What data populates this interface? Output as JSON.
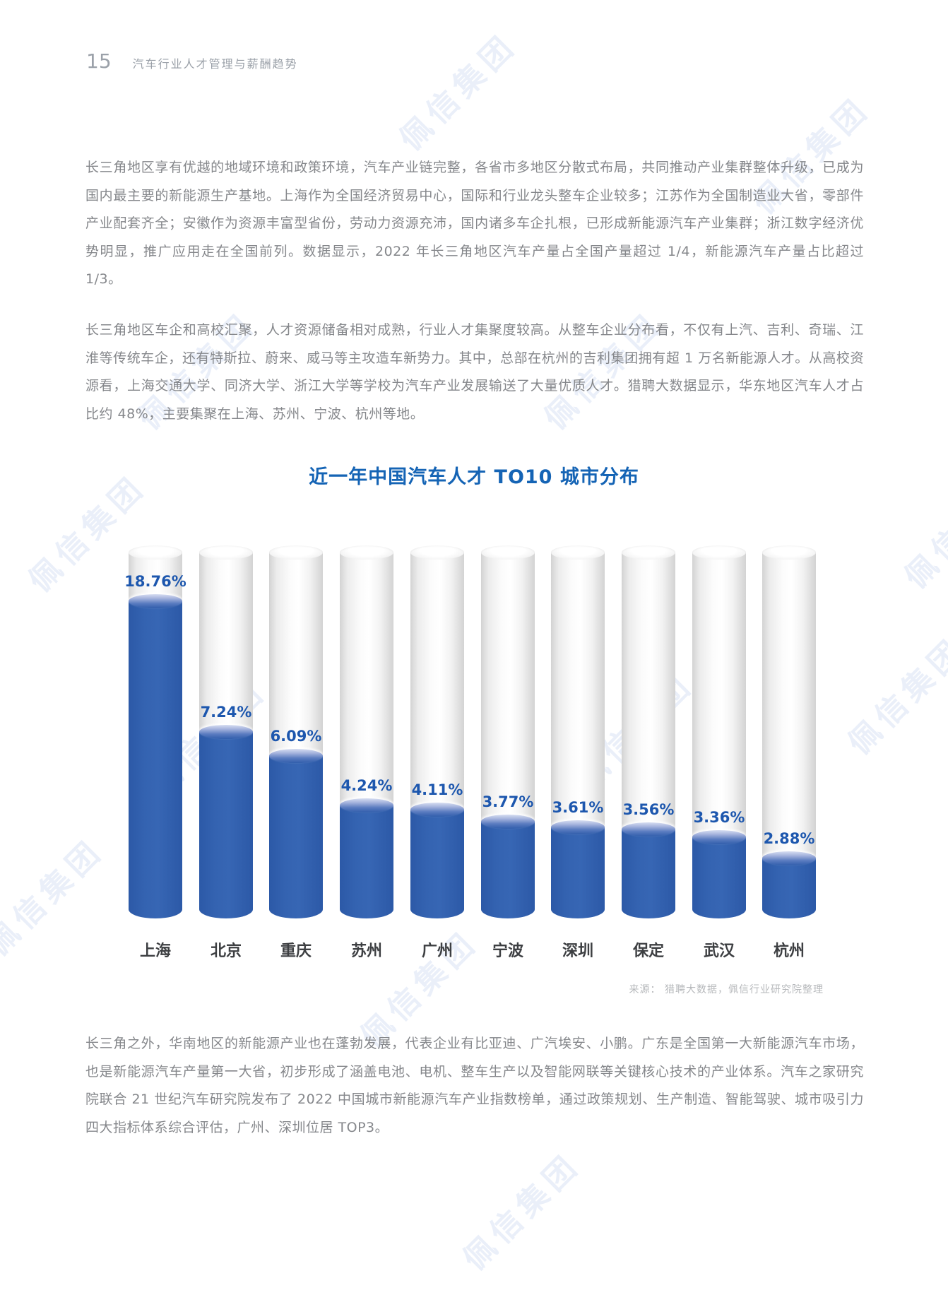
{
  "page": {
    "number": "15",
    "header_title": "汽车行业人才管理与薪酬趋势"
  },
  "watermark": {
    "text": "佩信集团"
  },
  "paragraphs": {
    "p1": "长三角地区享有优越的地域环境和政策环境，汽车产业链完整，各省市多地区分散式布局，共同推动产业集群整体升级，已成为国内最主要的新能源生产基地。上海作为全国经济贸易中心，国际和行业龙头整车企业较多；江苏作为全国制造业大省，零部件产业配套齐全；安徽作为资源丰富型省份，劳动力资源充沛，国内诸多车企扎根，已形成新能源汽车产业集群；浙江数字经济优势明显，推广应用走在全国前列。数据显示，2022 年长三角地区汽车产量占全国产量超过 1/4，新能源汽车产量占比超过 1/3。",
    "p2": "长三角地区车企和高校汇聚，人才资源储备相对成熟，行业人才集聚度较高。从整车企业分布看，不仅有上汽、吉利、奇瑞、江淮等传统车企，还有特斯拉、蔚来、威马等主攻造车新势力。其中，总部在杭州的吉利集团拥有超 1 万名新能源人才。从高校资源看，上海交通大学、同济大学、浙江大学等学校为汽车产业发展输送了大量优质人才。猎聘大数据显示，华东地区汽车人才占比约 48%，主要集聚在上海、苏州、宁波、杭州等地。",
    "p3": "长三角之外，华南地区的新能源产业也在蓬勃发展，代表企业有比亚迪、广汽埃安、小鹏。广东是全国第一大新能源汽车市场，也是新能源汽车产量第一大省，初步形成了涵盖电池、电机、整车生产以及智能网联等关键核心技术的产业体系。汽车之家研究院联合 21 世纪汽车研究院发布了 2022 中国城市新能源汽车产业指数榜单，通过政策规划、生产制造、智能驾驶、城市吸引力四大指标体系综合评估，广州、深圳位居 TOP3。"
  },
  "chart": {
    "title": "近一年中国汽车人才 TO10 城市分布",
    "source": "来源： 猎聘大数据，佩信行业研究院整理"
  },
  "chart_data": {
    "type": "bar",
    "title": "近一年中国汽车人才 TO10 城市分布",
    "categories": [
      "上海",
      "北京",
      "重庆",
      "苏州",
      "广州",
      "宁波",
      "深圳",
      "保定",
      "武汉",
      "杭州"
    ],
    "values": [
      18.76,
      7.24,
      6.09,
      4.24,
      4.11,
      3.77,
      3.61,
      3.56,
      3.36,
      2.88
    ],
    "value_labels": [
      "18.76%",
      "7.24%",
      "6.09%",
      "4.24%",
      "4.11%",
      "3.77%",
      "3.61%",
      "3.56%",
      "3.36%",
      "2.88%"
    ],
    "unit": "%",
    "xlabel": "",
    "ylabel": "",
    "legend": null,
    "grid": false,
    "style": "cylinder",
    "colors": {
      "fill": "#3160ae",
      "value_label": "#1d57ae",
      "track": "#e3e3e3",
      "title": "#1564b5",
      "category_label": "#3d3f42"
    }
  }
}
